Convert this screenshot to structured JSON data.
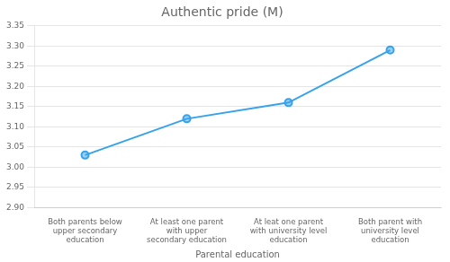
{
  "chart_data": {
    "type": "line",
    "title": "Authentic pride (M)",
    "x_label": "Parental education",
    "categories": [
      "Both parents below\nupper secondary\neducation",
      "At least one parent\nwith upper\nsecondary education",
      "At leat one parent\nwith university level\neducation",
      "Both parent with\nuniversity level\neducation"
    ],
    "values": [
      3.03,
      3.12,
      3.16,
      3.29
    ],
    "marker": "o",
    "ylim": [
      2.9,
      3.35
    ],
    "yticks": [
      {
        "value": 2.9,
        "label": "2.90"
      },
      2.95,
      {
        "value": 3.0,
        "label": "3.00"
      },
      3.05,
      {
        "value": 3.1,
        "label": "3.10"
      },
      3.15,
      {
        "value": 3.2,
        "label": "3.20"
      },
      3.25,
      {
        "value": 3.3,
        "label": "3.30"
      },
      3.35
    ],
    "grid": true
  }
}
